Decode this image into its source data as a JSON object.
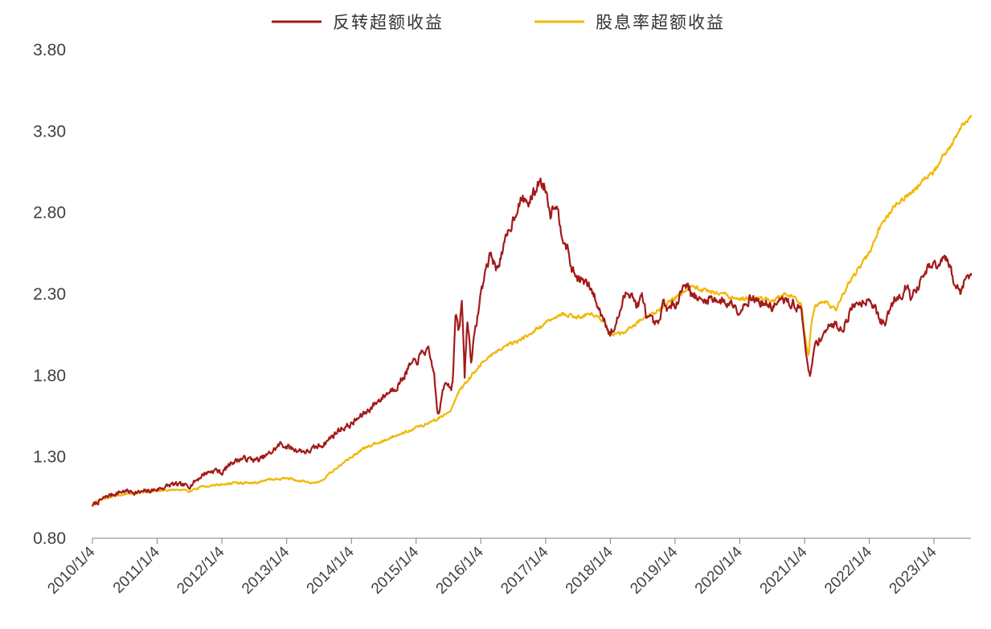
{
  "chart_data": {
    "type": "line",
    "title": "",
    "xlabel": "",
    "ylabel": "",
    "ylim": [
      0.8,
      3.8
    ],
    "y_ticks": [
      "0.80",
      "1.30",
      "1.80",
      "2.30",
      "2.80",
      "3.30",
      "3.80"
    ],
    "x_ticks": [
      "2010/1/4",
      "2011/1/4",
      "2012/1/4",
      "2013/1/4",
      "2014/1/4",
      "2015/1/4",
      "2016/1/4",
      "2017/1/4",
      "2018/1/4",
      "2019/1/4",
      "2020/1/4",
      "2021/1/4",
      "2022/1/4",
      "2023/1/4"
    ],
    "x_range": [
      "2010-01-04",
      "2023-07-31"
    ],
    "grid": false,
    "legend_position": "top-center",
    "series": [
      {
        "name": "反转超额收益",
        "color": "#A31A1A",
        "points": [
          [
            "2010-01-04",
            1.0
          ],
          [
            "2010-04-01",
            1.06
          ],
          [
            "2010-07-01",
            1.09
          ],
          [
            "2010-10-01",
            1.08
          ],
          [
            "2011-01-04",
            1.1
          ],
          [
            "2011-04-01",
            1.13
          ],
          [
            "2011-07-01",
            1.12
          ],
          [
            "2011-10-01",
            1.2
          ],
          [
            "2011-12-01",
            1.22
          ],
          [
            "2012-01-04",
            1.2
          ],
          [
            "2012-03-01",
            1.27
          ],
          [
            "2012-05-01",
            1.29
          ],
          [
            "2012-08-01",
            1.28
          ],
          [
            "2012-10-01",
            1.32
          ],
          [
            "2012-12-01",
            1.38
          ],
          [
            "2013-02-01",
            1.35
          ],
          [
            "2013-05-01",
            1.33
          ],
          [
            "2013-08-01",
            1.38
          ],
          [
            "2013-11-01",
            1.47
          ],
          [
            "2014-01-04",
            1.5
          ],
          [
            "2014-04-01",
            1.58
          ],
          [
            "2014-07-01",
            1.67
          ],
          [
            "2014-10-01",
            1.75
          ],
          [
            "2014-12-01",
            1.86
          ],
          [
            "2015-01-04",
            1.88
          ],
          [
            "2015-02-15",
            1.95
          ],
          [
            "2015-03-15",
            1.94
          ],
          [
            "2015-04-15",
            1.82
          ],
          [
            "2015-05-01",
            1.6
          ],
          [
            "2015-05-15",
            1.55
          ],
          [
            "2015-06-01",
            1.7
          ],
          [
            "2015-06-20",
            1.78
          ],
          [
            "2015-07-01",
            1.76
          ],
          [
            "2015-07-20",
            1.72
          ],
          [
            "2015-08-01",
            1.8
          ],
          [
            "2015-08-15",
            2.2
          ],
          [
            "2015-09-01",
            2.05
          ],
          [
            "2015-09-20",
            2.25
          ],
          [
            "2015-10-05",
            1.8
          ],
          [
            "2015-10-20",
            2.15
          ],
          [
            "2015-11-10",
            1.9
          ],
          [
            "2015-12-01",
            2.05
          ],
          [
            "2016-01-04",
            2.3
          ],
          [
            "2016-02-01",
            2.45
          ],
          [
            "2016-03-01",
            2.55
          ],
          [
            "2016-04-01",
            2.45
          ],
          [
            "2016-05-01",
            2.55
          ],
          [
            "2016-06-01",
            2.65
          ],
          [
            "2016-07-01",
            2.75
          ],
          [
            "2016-08-01",
            2.85
          ],
          [
            "2016-09-01",
            2.88
          ],
          [
            "2016-10-01",
            2.86
          ],
          [
            "2016-11-01",
            2.92
          ],
          [
            "2016-12-01",
            3.0
          ],
          [
            "2017-01-04",
            2.95
          ],
          [
            "2017-02-01",
            2.8
          ],
          [
            "2017-03-01",
            2.88
          ],
          [
            "2017-04-01",
            2.7
          ],
          [
            "2017-05-01",
            2.6
          ],
          [
            "2017-06-01",
            2.45
          ],
          [
            "2017-07-01",
            2.4
          ],
          [
            "2017-08-01",
            2.38
          ],
          [
            "2017-09-01",
            2.35
          ],
          [
            "2017-10-01",
            2.3
          ],
          [
            "2017-11-01",
            2.2
          ],
          [
            "2017-12-01",
            2.15
          ],
          [
            "2018-01-04",
            2.05
          ],
          [
            "2018-02-01",
            2.1
          ],
          [
            "2018-03-01",
            2.2
          ],
          [
            "2018-04-01",
            2.3
          ],
          [
            "2018-05-01",
            2.32
          ],
          [
            "2018-06-01",
            2.22
          ],
          [
            "2018-07-01",
            2.28
          ],
          [
            "2018-08-01",
            2.15
          ],
          [
            "2018-09-01",
            2.12
          ],
          [
            "2018-10-01",
            2.1
          ],
          [
            "2018-11-01",
            2.25
          ],
          [
            "2018-12-01",
            2.2
          ],
          [
            "2019-01-04",
            2.24
          ],
          [
            "2019-02-01",
            2.3
          ],
          [
            "2019-03-01",
            2.38
          ],
          [
            "2019-04-01",
            2.32
          ],
          [
            "2019-05-01",
            2.28
          ],
          [
            "2019-06-01",
            2.25
          ],
          [
            "2019-08-01",
            2.28
          ],
          [
            "2019-10-01",
            2.25
          ],
          [
            "2019-12-01",
            2.24
          ],
          [
            "2020-01-04",
            2.2
          ],
          [
            "2020-03-01",
            2.28
          ],
          [
            "2020-05-01",
            2.25
          ],
          [
            "2020-07-01",
            2.22
          ],
          [
            "2020-09-01",
            2.26
          ],
          [
            "2020-11-01",
            2.24
          ],
          [
            "2020-12-15",
            2.2
          ],
          [
            "2021-01-04",
            2.05
          ],
          [
            "2021-01-20",
            1.85
          ],
          [
            "2021-02-05",
            1.78
          ],
          [
            "2021-03-01",
            1.98
          ],
          [
            "2021-04-01",
            2.03
          ],
          [
            "2021-05-01",
            2.08
          ],
          [
            "2021-06-01",
            2.1
          ],
          [
            "2021-07-01",
            2.12
          ],
          [
            "2021-08-01",
            2.08
          ],
          [
            "2021-09-01",
            2.15
          ],
          [
            "2021-10-01",
            2.22
          ],
          [
            "2021-11-01",
            2.25
          ],
          [
            "2021-12-01",
            2.26
          ],
          [
            "2022-01-04",
            2.28
          ],
          [
            "2022-02-01",
            2.22
          ],
          [
            "2022-03-01",
            2.15
          ],
          [
            "2022-04-01",
            2.1
          ],
          [
            "2022-05-01",
            2.22
          ],
          [
            "2022-06-01",
            2.28
          ],
          [
            "2022-07-01",
            2.3
          ],
          [
            "2022-08-01",
            2.35
          ],
          [
            "2022-09-01",
            2.28
          ],
          [
            "2022-10-01",
            2.33
          ],
          [
            "2022-11-01",
            2.4
          ],
          [
            "2022-12-01",
            2.45
          ],
          [
            "2023-01-04",
            2.48
          ],
          [
            "2023-02-01",
            2.46
          ],
          [
            "2023-03-01",
            2.52
          ],
          [
            "2023-04-01",
            2.48
          ],
          [
            "2023-05-01",
            2.35
          ],
          [
            "2023-06-01",
            2.32
          ],
          [
            "2023-07-01",
            2.4
          ],
          [
            "2023-07-31",
            2.43
          ]
        ]
      },
      {
        "name": "股息率超额收益",
        "color": "#F2B705",
        "points": [
          [
            "2010-01-04",
            1.02
          ],
          [
            "2010-04-01",
            1.05
          ],
          [
            "2010-07-01",
            1.07
          ],
          [
            "2010-10-01",
            1.08
          ],
          [
            "2011-01-04",
            1.09
          ],
          [
            "2011-04-01",
            1.1
          ],
          [
            "2011-07-01",
            1.09
          ],
          [
            "2011-10-01",
            1.12
          ],
          [
            "2012-01-04",
            1.13
          ],
          [
            "2012-04-01",
            1.14
          ],
          [
            "2012-07-01",
            1.14
          ],
          [
            "2012-10-01",
            1.16
          ],
          [
            "2013-01-04",
            1.17
          ],
          [
            "2013-04-01",
            1.15
          ],
          [
            "2013-07-01",
            1.14
          ],
          [
            "2013-10-01",
            1.22
          ],
          [
            "2014-01-04",
            1.3
          ],
          [
            "2014-04-01",
            1.36
          ],
          [
            "2014-07-01",
            1.4
          ],
          [
            "2014-10-01",
            1.44
          ],
          [
            "2015-01-04",
            1.48
          ],
          [
            "2015-03-01",
            1.5
          ],
          [
            "2015-05-01",
            1.53
          ],
          [
            "2015-06-15",
            1.56
          ],
          [
            "2015-07-15",
            1.58
          ],
          [
            "2015-09-01",
            1.7
          ],
          [
            "2015-11-01",
            1.78
          ],
          [
            "2016-01-04",
            1.87
          ],
          [
            "2016-04-01",
            1.95
          ],
          [
            "2016-07-01",
            2.0
          ],
          [
            "2016-10-01",
            2.05
          ],
          [
            "2017-01-04",
            2.12
          ],
          [
            "2017-04-01",
            2.18
          ],
          [
            "2017-07-01",
            2.16
          ],
          [
            "2017-10-01",
            2.18
          ],
          [
            "2017-12-01",
            2.12
          ],
          [
            "2018-01-04",
            2.05
          ],
          [
            "2018-03-01",
            2.05
          ],
          [
            "2018-06-01",
            2.12
          ],
          [
            "2018-09-01",
            2.18
          ],
          [
            "2018-12-01",
            2.25
          ],
          [
            "2019-01-04",
            2.28
          ],
          [
            "2019-04-01",
            2.35
          ],
          [
            "2019-07-01",
            2.32
          ],
          [
            "2019-10-01",
            2.3
          ],
          [
            "2020-01-04",
            2.26
          ],
          [
            "2020-04-01",
            2.28
          ],
          [
            "2020-07-01",
            2.26
          ],
          [
            "2020-10-01",
            2.3
          ],
          [
            "2020-12-15",
            2.25
          ],
          [
            "2021-01-04",
            2.05
          ],
          [
            "2021-01-25",
            1.9
          ],
          [
            "2021-02-10",
            2.12
          ],
          [
            "2021-03-01",
            2.22
          ],
          [
            "2021-05-01",
            2.25
          ],
          [
            "2021-07-01",
            2.2
          ],
          [
            "2021-09-01",
            2.35
          ],
          [
            "2021-11-01",
            2.45
          ],
          [
            "2022-01-04",
            2.55
          ],
          [
            "2022-03-01",
            2.7
          ],
          [
            "2022-05-01",
            2.8
          ],
          [
            "2022-07-01",
            2.88
          ],
          [
            "2022-09-01",
            2.92
          ],
          [
            "2022-11-01",
            3.0
          ],
          [
            "2023-01-04",
            3.05
          ],
          [
            "2023-03-01",
            3.15
          ],
          [
            "2023-05-01",
            3.25
          ],
          [
            "2023-06-15",
            3.35
          ],
          [
            "2023-07-31",
            3.4
          ]
        ]
      }
    ]
  }
}
